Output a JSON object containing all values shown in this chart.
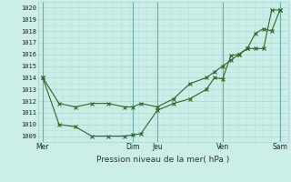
{
  "xlabel": "Pression niveau de la mer( hPa )",
  "background_color": "#cceee8",
  "grid_major_color": "#aad4ce",
  "grid_minor_color": "#bbddd8",
  "line_color": "#2d6628",
  "ylim": [
    1008.5,
    1020.5
  ],
  "yticks": [
    1009,
    1010,
    1011,
    1012,
    1013,
    1014,
    1015,
    1016,
    1017,
    1018,
    1019,
    1020
  ],
  "day_labels": [
    "Mer",
    "Dim",
    "Jeu",
    "Ven",
    "Sam"
  ],
  "day_positions": [
    0,
    5.5,
    7,
    11,
    14.5
  ],
  "vline_positions": [
    0,
    5.5,
    7,
    11,
    14.5
  ],
  "xlim": [
    -0.3,
    15.0
  ],
  "line1_x": [
    0,
    1,
    2,
    3,
    4,
    5,
    5.5,
    6,
    7,
    8,
    9,
    10,
    10.5,
    11,
    11.5,
    12,
    12.5,
    13,
    13.5,
    14,
    14.5
  ],
  "line1_y": [
    1014.0,
    1011.8,
    1011.5,
    1011.8,
    1011.8,
    1011.5,
    1011.5,
    1011.8,
    1011.5,
    1012.2,
    1013.5,
    1014.0,
    1014.5,
    1015.0,
    1015.5,
    1016.0,
    1016.5,
    1017.8,
    1018.2,
    1018.0,
    1019.8
  ],
  "line2_x": [
    0,
    1,
    2,
    3,
    4,
    5,
    5.5,
    6,
    7,
    8,
    9,
    10,
    10.5,
    11,
    11.5,
    12,
    12.5,
    13,
    13.5,
    14,
    14.5
  ],
  "line2_y": [
    1014.0,
    1010.0,
    1009.8,
    1009.0,
    1009.0,
    1009.0,
    1009.1,
    1009.2,
    1011.2,
    1011.8,
    1012.2,
    1013.0,
    1014.0,
    1013.9,
    1015.9,
    1016.0,
    1016.5,
    1016.5,
    1016.5,
    1019.8,
    1019.8
  ]
}
